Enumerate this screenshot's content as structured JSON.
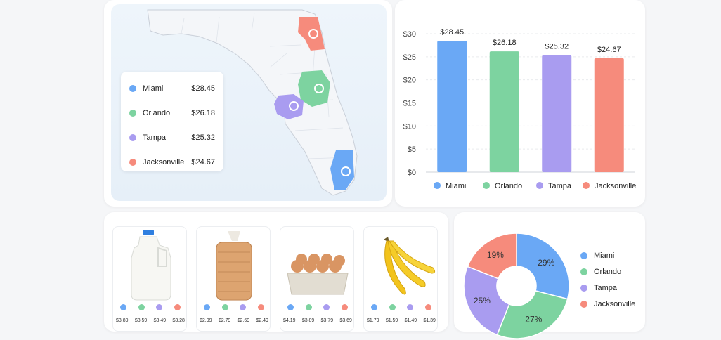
{
  "colors": {
    "miami": "#6aa8f5",
    "orlando": "#7dd3a0",
    "tampa": "#a99cf0",
    "jacksonville": "#f68b7c"
  },
  "map_legend": [
    {
      "name": "Miami",
      "price": "$28.45",
      "color": "#6aa8f5"
    },
    {
      "name": "Orlando",
      "price": "$26.18",
      "color": "#7dd3a0"
    },
    {
      "name": "Tampa",
      "price": "$25.32",
      "color": "#a99cf0"
    },
    {
      "name": "Jacksonville",
      "price": "$24.67",
      "color": "#f68b7c"
    }
  ],
  "products": [
    {
      "icon": "milk-jug-icon",
      "prices": [
        "$3.89",
        "$3.59",
        "$3.49",
        "$3.28"
      ]
    },
    {
      "icon": "bread-loaf-icon",
      "prices": [
        "$2.99",
        "$2.79",
        "$2.69",
        "$2.49"
      ]
    },
    {
      "icon": "egg-carton-icon",
      "prices": [
        "$4.19",
        "$3.89",
        "$3.79",
        "$3.69"
      ]
    },
    {
      "icon": "bananas-icon",
      "prices": [
        "$1.79",
        "$1.59",
        "$1.49",
        "$1.39"
      ]
    }
  ],
  "chart_data": [
    {
      "type": "bar",
      "categories": [
        "Miami",
        "Orlando",
        "Tampa",
        "Jacksonville"
      ],
      "values": [
        28.45,
        26.18,
        25.32,
        24.67
      ],
      "value_labels": [
        "$28.45",
        "$26.18",
        "$25.32",
        "$24.67"
      ],
      "yticks": [
        "$0",
        "$5",
        "$10",
        "$15",
        "$20",
        "$25",
        "$30"
      ],
      "ylim": [
        0,
        30
      ],
      "colors": [
        "#6aa8f5",
        "#7dd3a0",
        "#a99cf0",
        "#f68b7c"
      ],
      "legend": "bottom",
      "grid": true
    },
    {
      "type": "pie",
      "categories": [
        "Miami",
        "Orlando",
        "Tampa",
        "Jacksonville"
      ],
      "values": [
        29,
        27,
        25,
        19
      ],
      "labels": [
        "29%",
        "27%",
        "25%",
        "19%"
      ],
      "colors": [
        "#6aa8f5",
        "#7dd3a0",
        "#a99cf0",
        "#f68b7c"
      ],
      "legend": "right"
    }
  ]
}
